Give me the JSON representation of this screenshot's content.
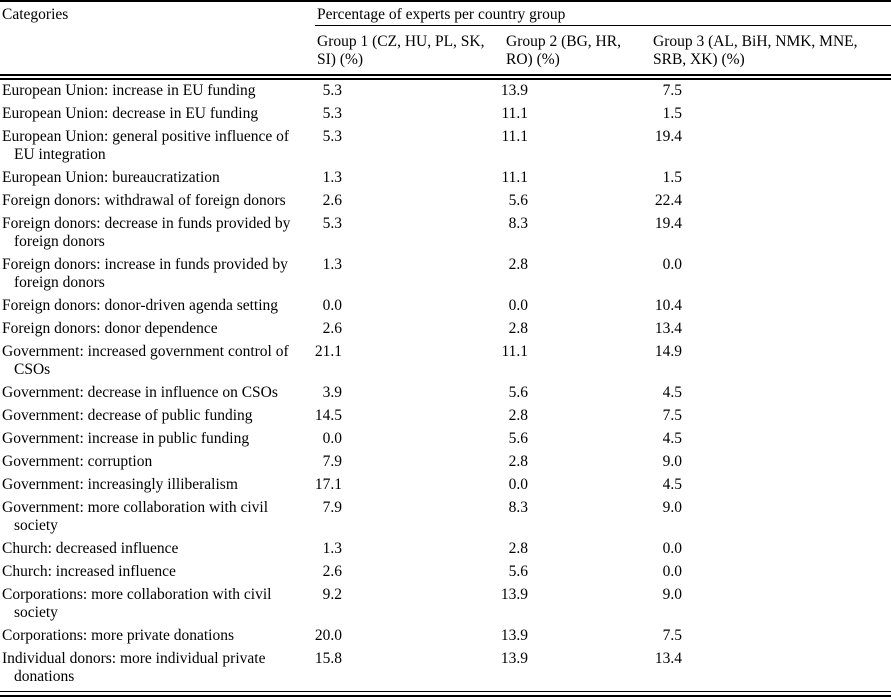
{
  "table": {
    "header": {
      "categories_label": "Categories",
      "spanner_label": "Percentage of experts per country group",
      "group1": {
        "line1": "Group 1 (CZ, HU, PL, SK,",
        "line2": "SI) (%)"
      },
      "group2": {
        "line1": "Group 2 (BG, HR,",
        "line2": "RO) (%)"
      },
      "group3": {
        "line1": "Group 3 (AL, BiH, NMK, MNE,",
        "line2": "SRB, XK) (%)"
      }
    },
    "rows": [
      {
        "category": "European Union: increase in EU funding",
        "g1": "5.3",
        "g2": "13.9",
        "g3": "7.5"
      },
      {
        "category": "European Union: decrease in EU funding",
        "g1": "5.3",
        "g2": "11.1",
        "g3": "1.5"
      },
      {
        "category": "European Union: general positive influence of",
        "category2": "EU integration",
        "g1": "5.3",
        "g2": "11.1",
        "g3": "19.4"
      },
      {
        "category": "European Union: bureaucratization",
        "g1": "1.3",
        "g2": "11.1",
        "g3": "1.5"
      },
      {
        "category": "Foreign donors: withdrawal of foreign donors",
        "g1": "2.6",
        "g2": "5.6",
        "g3": "22.4"
      },
      {
        "category": "Foreign donors: decrease in funds provided by",
        "category2": "foreign donors",
        "g1": "5.3",
        "g2": "8.3",
        "g3": "19.4"
      },
      {
        "category": "Foreign donors: increase in funds provided by",
        "category2": "foreign donors",
        "g1": "1.3",
        "g2": "2.8",
        "g3": "0.0"
      },
      {
        "category": "Foreign donors: donor-driven agenda setting",
        "g1": "0.0",
        "g2": "0.0",
        "g3": "10.4"
      },
      {
        "category": "Foreign donors: donor dependence",
        "g1": "2.6",
        "g2": "2.8",
        "g3": "13.4"
      },
      {
        "category": "Government: increased government control of",
        "category2": "CSOs",
        "g1": "21.1",
        "g2": "11.1",
        "g3": "14.9"
      },
      {
        "category": "Government: decrease in influence on CSOs",
        "g1": "3.9",
        "g2": "5.6",
        "g3": "4.5"
      },
      {
        "category": "Government: decrease of public funding",
        "g1": "14.5",
        "g2": "2.8",
        "g3": "7.5"
      },
      {
        "category": "Government: increase in public funding",
        "g1": "0.0",
        "g2": "5.6",
        "g3": "4.5"
      },
      {
        "category": "Government: corruption",
        "g1": "7.9",
        "g2": "2.8",
        "g3": "9.0"
      },
      {
        "category": "Government: increasingly illiberalism",
        "g1": "17.1",
        "g2": "0.0",
        "g3": "4.5"
      },
      {
        "category": "Government: more collaboration with civil",
        "category2": "society",
        "g1": "7.9",
        "g2": "8.3",
        "g3": "9.0"
      },
      {
        "category": "Church: decreased influence",
        "g1": "1.3",
        "g2": "2.8",
        "g3": "0.0"
      },
      {
        "category": "Church: increased influence",
        "g1": "2.6",
        "g2": "5.6",
        "g3": "0.0"
      },
      {
        "category": "Corporations: more collaboration with civil",
        "category2": "society",
        "g1": "9.2",
        "g2": "13.9",
        "g3": "9.0"
      },
      {
        "category": "Corporations: more private donations",
        "g1": "20.0",
        "g2": "13.9",
        "g3": "7.5"
      },
      {
        "category": "Individual donors: more individual private",
        "category2": "donations",
        "g1": "15.8",
        "g2": "13.9",
        "g3": "13.4"
      }
    ]
  }
}
